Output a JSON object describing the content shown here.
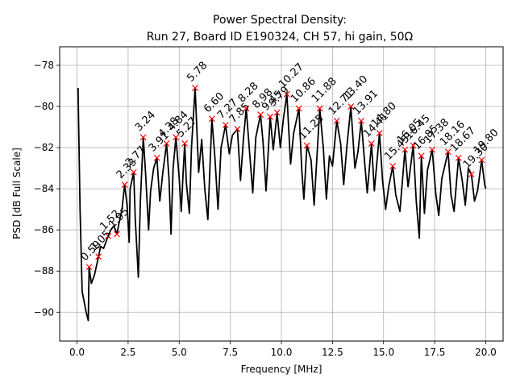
{
  "chart_data": {
    "type": "line",
    "title": "Power Spectral Density:",
    "subtitle": "Run 27, Board ID E190324, CH 57, hi gain, 50Ω",
    "xlabel": "Frequency [MHz]",
    "ylabel": "PSD [dB Full Scale]",
    "xlim": [
      -0.85,
      20.85
    ],
    "ylim": [
      -91.4,
      -77.1
    ],
    "xticks": [
      0.0,
      2.5,
      5.0,
      7.5,
      10.0,
      12.5,
      15.0,
      17.5,
      20.0
    ],
    "xtick_labels": [
      "0.0",
      "2.5",
      "5.0",
      "7.5",
      "10.0",
      "12.5",
      "15.0",
      "17.5",
      "20.0"
    ],
    "yticks": [
      -90,
      -88,
      -86,
      -84,
      -82,
      -80,
      -78
    ],
    "ytick_labels": [
      "−90",
      "−88",
      "−86",
      "−84",
      "−82",
      "−80",
      "−78"
    ],
    "grid": true,
    "line_color": "#000000",
    "marker_color": "#ff0000",
    "series": [
      {
        "values": [
          [
            0.05,
            -79.1
          ],
          [
            0.15,
            -85.0
          ],
          [
            0.25,
            -89.0
          ],
          [
            0.35,
            -89.5
          ],
          [
            0.45,
            -90.0
          ],
          [
            0.55,
            -90.4
          ],
          [
            0.59,
            -87.8
          ],
          [
            0.7,
            -88.6
          ],
          [
            0.85,
            -88.2
          ],
          [
            1.05,
            -87.3
          ],
          [
            1.15,
            -86.8
          ],
          [
            1.3,
            -86.9
          ],
          [
            1.52,
            -86.3
          ],
          [
            1.65,
            -86.0
          ],
          [
            1.8,
            -85.8
          ],
          [
            1.95,
            -86.2
          ],
          [
            2.05,
            -85.7
          ],
          [
            2.2,
            -85.0
          ],
          [
            2.33,
            -83.8
          ],
          [
            2.45,
            -84.8
          ],
          [
            2.55,
            -86.6
          ],
          [
            2.6,
            -84.0
          ],
          [
            2.77,
            -83.2
          ],
          [
            2.85,
            -85.5
          ],
          [
            3.0,
            -88.3
          ],
          [
            3.1,
            -84.6
          ],
          [
            3.24,
            -81.5
          ],
          [
            3.35,
            -83.2
          ],
          [
            3.5,
            -86.0
          ],
          [
            3.6,
            -84.1
          ],
          [
            3.75,
            -83.0
          ],
          [
            3.91,
            -82.5
          ],
          [
            4.05,
            -84.6
          ],
          [
            4.2,
            -83.2
          ],
          [
            4.38,
            -81.8
          ],
          [
            4.5,
            -83.5
          ],
          [
            4.6,
            -86.2
          ],
          [
            4.7,
            -83.0
          ],
          [
            4.84,
            -81.5
          ],
          [
            5.0,
            -83.5
          ],
          [
            5.1,
            -85.1
          ],
          [
            5.2,
            -83.1
          ],
          [
            5.27,
            -81.8
          ],
          [
            5.35,
            -83.7
          ],
          [
            5.5,
            -85.2
          ],
          [
            5.6,
            -82.0
          ],
          [
            5.78,
            -79.1
          ],
          [
            5.95,
            -83.2
          ],
          [
            6.1,
            -81.6
          ],
          [
            6.25,
            -84.0
          ],
          [
            6.4,
            -85.5
          ],
          [
            6.6,
            -80.6
          ],
          [
            6.75,
            -82.5
          ],
          [
            6.9,
            -85.0
          ],
          [
            7.05,
            -82.0
          ],
          [
            7.27,
            -80.9
          ],
          [
            7.45,
            -82.3
          ],
          [
            7.6,
            -81.4
          ],
          [
            7.85,
            -81.1
          ],
          [
            8.0,
            -83.6
          ],
          [
            8.15,
            -81.5
          ],
          [
            8.28,
            -80.1
          ],
          [
            8.45,
            -82.3
          ],
          [
            8.6,
            -84.2
          ],
          [
            8.75,
            -81.5
          ],
          [
            8.98,
            -80.4
          ],
          [
            9.1,
            -81.7
          ],
          [
            9.25,
            -84.1
          ],
          [
            9.45,
            -80.5
          ],
          [
            9.6,
            -82.1
          ],
          [
            9.79,
            -80.3
          ],
          [
            9.95,
            -82.0
          ],
          [
            10.1,
            -80.6
          ],
          [
            10.27,
            -79.4
          ],
          [
            10.45,
            -82.8
          ],
          [
            10.6,
            -81.3
          ],
          [
            10.86,
            -80.1
          ],
          [
            11.0,
            -83.1
          ],
          [
            11.1,
            -84.5
          ],
          [
            11.25,
            -81.9
          ],
          [
            11.45,
            -82.6
          ],
          [
            11.6,
            -84.8
          ],
          [
            11.88,
            -80.1
          ],
          [
            12.05,
            -82.0
          ],
          [
            12.2,
            -84.5
          ],
          [
            12.35,
            -82.4
          ],
          [
            12.5,
            -82.9
          ],
          [
            12.71,
            -80.7
          ],
          [
            12.9,
            -81.8
          ],
          [
            13.05,
            -83.8
          ],
          [
            13.2,
            -82.0
          ],
          [
            13.4,
            -80.0
          ],
          [
            13.6,
            -83.0
          ],
          [
            13.75,
            -82.2
          ],
          [
            13.91,
            -80.7
          ],
          [
            14.05,
            -82.4
          ],
          [
            14.2,
            -84.2
          ],
          [
            14.41,
            -81.8
          ],
          [
            14.55,
            -84.1
          ],
          [
            14.8,
            -81.3
          ],
          [
            14.95,
            -83.6
          ],
          [
            15.1,
            -85.0
          ],
          [
            15.25,
            -83.9
          ],
          [
            15.45,
            -82.9
          ],
          [
            15.6,
            -84.3
          ],
          [
            15.8,
            -85.1
          ],
          [
            16.05,
            -82.1
          ],
          [
            16.2,
            -83.9
          ],
          [
            16.45,
            -81.9
          ],
          [
            16.6,
            -84.6
          ],
          [
            16.75,
            -86.4
          ],
          [
            16.85,
            -82.4
          ],
          [
            17.0,
            -85.2
          ],
          [
            17.15,
            -83.1
          ],
          [
            17.38,
            -82.1
          ],
          [
            17.55,
            -84.2
          ],
          [
            17.7,
            -85.3
          ],
          [
            17.85,
            -83.5
          ],
          [
            18.16,
            -82.2
          ],
          [
            18.3,
            -84.3
          ],
          [
            18.45,
            -85.1
          ],
          [
            18.67,
            -82.5
          ],
          [
            18.85,
            -83.6
          ],
          [
            19.0,
            -84.8
          ],
          [
            19.15,
            -83.0
          ],
          [
            19.3,
            -83.3
          ],
          [
            19.45,
            -84.6
          ],
          [
            19.6,
            -84.1
          ],
          [
            19.8,
            -82.6
          ],
          [
            19.95,
            -83.8
          ],
          [
            20.0,
            -84.0
          ]
        ]
      }
    ],
    "peaks": [
      {
        "x": 0.59,
        "y": -87.8,
        "label": "0.59"
      },
      {
        "x": 1.05,
        "y": -87.3,
        "label": "1.05"
      },
      {
        "x": 1.52,
        "y": -86.3,
        "label": "1.52"
      },
      {
        "x": 1.95,
        "y": -86.2,
        "label": "1.95"
      },
      {
        "x": 2.33,
        "y": -83.8,
        "label": "2.33"
      },
      {
        "x": 2.77,
        "y": -83.2,
        "label": "2.77"
      },
      {
        "x": 3.24,
        "y": -81.5,
        "label": "3.24"
      },
      {
        "x": 3.91,
        "y": -82.5,
        "label": "3.91"
      },
      {
        "x": 4.38,
        "y": -81.8,
        "label": "4.38"
      },
      {
        "x": 4.84,
        "y": -81.5,
        "label": "4.84"
      },
      {
        "x": 5.27,
        "y": -81.8,
        "label": "5.27"
      },
      {
        "x": 5.78,
        "y": -79.1,
        "label": "5.78"
      },
      {
        "x": 6.6,
        "y": -80.6,
        "label": "6.60"
      },
      {
        "x": 7.27,
        "y": -80.9,
        "label": "7.27"
      },
      {
        "x": 7.85,
        "y": -81.1,
        "label": "7.85"
      },
      {
        "x": 8.28,
        "y": -80.1,
        "label": "8.28"
      },
      {
        "x": 8.98,
        "y": -80.4,
        "label": "8.98"
      },
      {
        "x": 9.45,
        "y": -80.5,
        "label": "9.45"
      },
      {
        "x": 9.79,
        "y": -80.3,
        "label": "9.79"
      },
      {
        "x": 10.27,
        "y": -79.4,
        "label": "10.27"
      },
      {
        "x": 10.86,
        "y": -80.1,
        "label": "10.86"
      },
      {
        "x": 11.25,
        "y": -81.9,
        "label": "11.25"
      },
      {
        "x": 11.88,
        "y": -80.1,
        "label": "11.88"
      },
      {
        "x": 12.71,
        "y": -80.7,
        "label": "12.71"
      },
      {
        "x": 13.4,
        "y": -80.0,
        "label": "13.40"
      },
      {
        "x": 13.91,
        "y": -80.7,
        "label": "13.91"
      },
      {
        "x": 14.41,
        "y": -81.8,
        "label": "14.41"
      },
      {
        "x": 14.8,
        "y": -81.3,
        "label": "14.80"
      },
      {
        "x": 15.45,
        "y": -82.9,
        "label": "15.45"
      },
      {
        "x": 16.05,
        "y": -82.1,
        "label": "16.05"
      },
      {
        "x": 16.45,
        "y": -81.9,
        "label": "16.45"
      },
      {
        "x": 16.85,
        "y": -82.4,
        "label": "16.85"
      },
      {
        "x": 17.38,
        "y": -82.1,
        "label": "17.38"
      },
      {
        "x": 18.16,
        "y": -82.2,
        "label": "18.16"
      },
      {
        "x": 18.67,
        "y": -82.5,
        "label": "18.67"
      },
      {
        "x": 19.3,
        "y": -83.3,
        "label": "19.30"
      },
      {
        "x": 19.8,
        "y": -82.6,
        "label": "19.80"
      }
    ]
  }
}
